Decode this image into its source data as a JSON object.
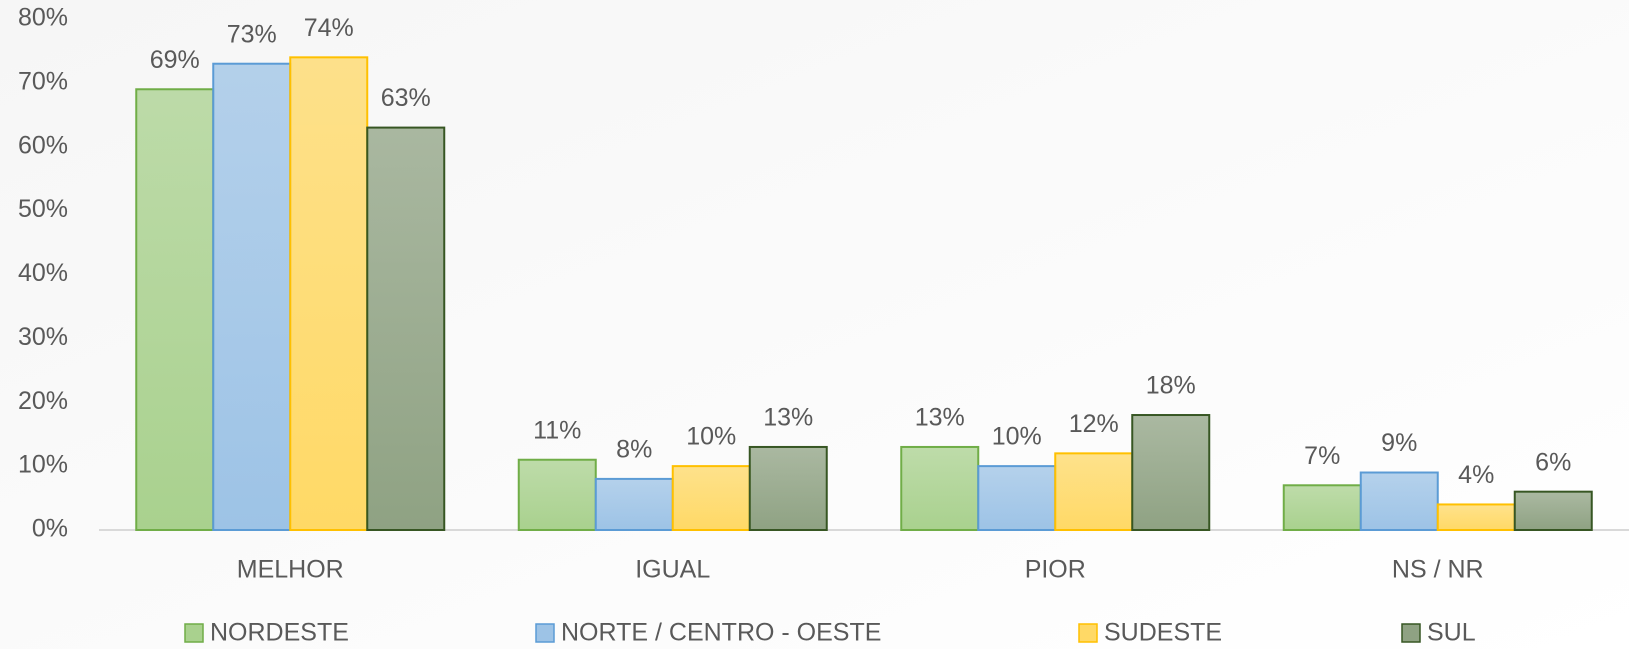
{
  "chart_data": {
    "type": "bar",
    "categories": [
      "MELHOR",
      "IGUAL",
      "PIOR",
      "NS / NR"
    ],
    "series": [
      {
        "name": "NORDESTE",
        "color": "#a9d18e",
        "edgecolor": "#70ad47",
        "values": [
          69,
          11,
          13,
          7
        ],
        "value_labels": [
          "69%",
          "11%",
          "13%",
          "7%"
        ]
      },
      {
        "name": "NORTE / CENTRO - OESTE",
        "color": "#9dc3e6",
        "edgecolor": "#5b9bd5",
        "values": [
          73,
          8,
          10,
          9
        ],
        "value_labels": [
          "73%",
          "8%",
          "10%",
          "9%"
        ]
      },
      {
        "name": "SUDESTE",
        "color": "#ffd966",
        "edgecolor": "#ffc000",
        "values": [
          74,
          10,
          12,
          4
        ],
        "value_labels": [
          "74%",
          "10%",
          "12%",
          "4%"
        ]
      },
      {
        "name": "SUL",
        "color": "#8fa283",
        "edgecolor": "#375623",
        "values": [
          63,
          13,
          18,
          6
        ],
        "value_labels": [
          "63%",
          "13%",
          "18%",
          "6%"
        ]
      }
    ],
    "ylim": [
      0,
      80
    ],
    "yticks": [
      {
        "value": 0,
        "label": "0%"
      },
      {
        "value": 10,
        "label": "10%"
      },
      {
        "value": 20,
        "label": "20%"
      },
      {
        "value": 30,
        "label": "30%"
      },
      {
        "value": 40,
        "label": "40%"
      },
      {
        "value": 50,
        "label": "50%"
      },
      {
        "value": 60,
        "label": "60%"
      },
      {
        "value": 70,
        "label": "70%"
      },
      {
        "value": 80,
        "label": "80%"
      }
    ],
    "legend": "bottom"
  }
}
